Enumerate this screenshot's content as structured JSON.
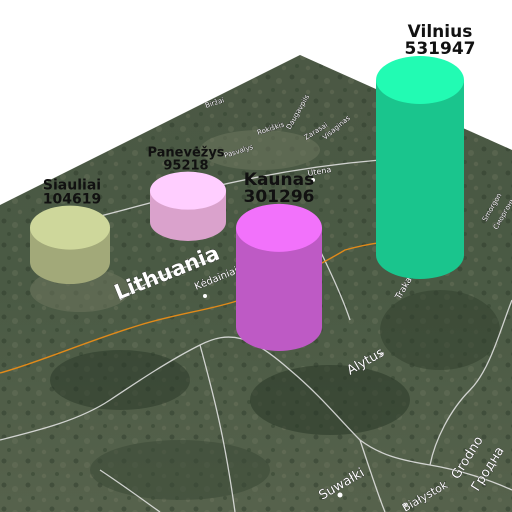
{
  "map": {
    "country_label": "Lithuania",
    "place_labels": [
      {
        "text": "Kėdainiai",
        "name": "kedainiai"
      },
      {
        "text": "Alytus",
        "name": "alytus"
      },
      {
        "text": "Utena",
        "name": "utena"
      },
      {
        "text": "Pasvalys",
        "name": "pasvalys"
      },
      {
        "text": "Biržai",
        "name": "birzai"
      },
      {
        "text": "Rokiškis",
        "name": "rokiskis"
      },
      {
        "text": "Zarasai",
        "name": "zarasai"
      },
      {
        "text": "Daugavpils",
        "name": "daugavpils"
      },
      {
        "text": "Visaginas",
        "name": "visaginas"
      },
      {
        "text": "Trakai",
        "name": "trakai"
      },
      {
        "text": "Suwałki",
        "name": "suwalki"
      },
      {
        "text": "Grodno",
        "name": "grodno"
      },
      {
        "text": "Гродна",
        "name": "grodna-cyrillic"
      },
      {
        "text": "Smorgon",
        "name": "smorgon"
      },
      {
        "text": "Сморгонь",
        "name": "smorgon-cyrillic"
      },
      {
        "text": "Białystok",
        "name": "bialystok"
      }
    ]
  },
  "chart_data": {
    "type": "3d-cylinder-map",
    "series": [
      {
        "city": "Vilnius",
        "value": 531947,
        "color": "#1ee0a0"
      },
      {
        "city": "Kaunas",
        "value": 301296,
        "color": "#d866e0"
      },
      {
        "city": "Siauliai",
        "value": 104619,
        "color": "#b8c08a"
      },
      {
        "city": "Panevėžys",
        "value": 95218,
        "color": "#f8b8e8"
      }
    ]
  },
  "colors": {
    "terrain_dark": "#3a4a36",
    "terrain_light": "#66705a",
    "border": "#e8e8e8",
    "road": "#e08a1a"
  }
}
